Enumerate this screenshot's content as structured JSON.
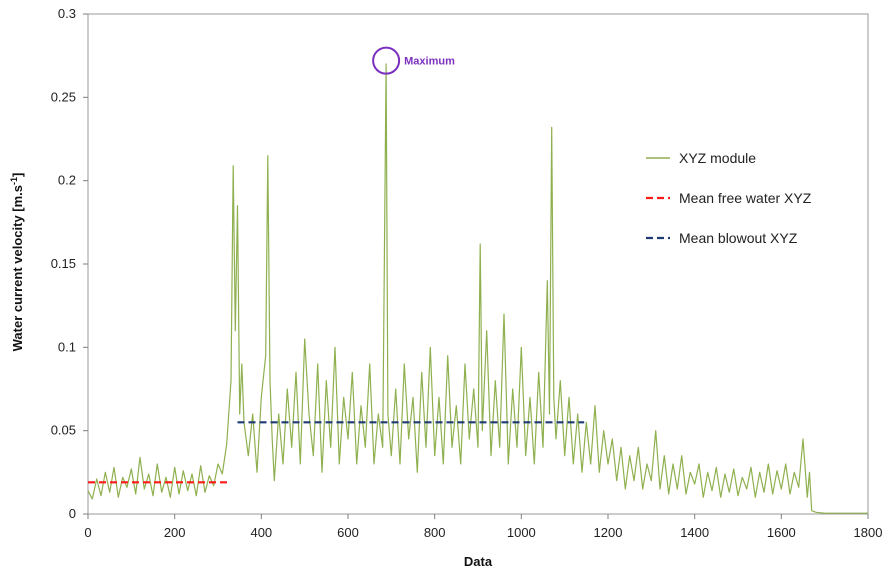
{
  "chart_data": {
    "type": "line",
    "title": "",
    "xlabel": "Data",
    "ylabel": "Water current velocity  [m.s",
    "ylabel_sup": "-1",
    "ylabel_close": "]",
    "xlim": [
      0,
      1800
    ],
    "ylim": [
      0,
      0.3
    ],
    "x_ticks": [
      0,
      200,
      400,
      600,
      800,
      1000,
      1200,
      1400,
      1600,
      1800
    ],
    "y_ticks": [
      0,
      0.05,
      0.1,
      0.15,
      0.2,
      0.25,
      0.3
    ],
    "x_tick_labels": [
      "0",
      "200",
      "400",
      "600",
      "800",
      "1000",
      "1200",
      "1400",
      "1600",
      "1800"
    ],
    "y_tick_labels": [
      "0",
      "0.05",
      "0.1",
      "0.15",
      "0.2",
      "0.25",
      "0.3"
    ],
    "grid": false,
    "legend_position": "right",
    "series": [
      {
        "name": "XYZ module",
        "style": "solid",
        "color": "#8fb04f",
        "points": [
          [
            0,
            0.014
          ],
          [
            10,
            0.009
          ],
          [
            20,
            0.021
          ],
          [
            30,
            0.011
          ],
          [
            40,
            0.025
          ],
          [
            50,
            0.013
          ],
          [
            60,
            0.028
          ],
          [
            70,
            0.01
          ],
          [
            80,
            0.022
          ],
          [
            90,
            0.016
          ],
          [
            100,
            0.027
          ],
          [
            110,
            0.012
          ],
          [
            120,
            0.034
          ],
          [
            130,
            0.015
          ],
          [
            140,
            0.024
          ],
          [
            150,
            0.011
          ],
          [
            160,
            0.03
          ],
          [
            170,
            0.013
          ],
          [
            180,
            0.022
          ],
          [
            190,
            0.01
          ],
          [
            200,
            0.028
          ],
          [
            210,
            0.012
          ],
          [
            220,
            0.026
          ],
          [
            230,
            0.014
          ],
          [
            240,
            0.024
          ],
          [
            250,
            0.011
          ],
          [
            260,
            0.029
          ],
          [
            270,
            0.013
          ],
          [
            280,
            0.023
          ],
          [
            290,
            0.017
          ],
          [
            300,
            0.03
          ],
          [
            310,
            0.024
          ],
          [
            320,
            0.042
          ],
          [
            330,
            0.08
          ],
          [
            335,
            0.209
          ],
          [
            340,
            0.11
          ],
          [
            345,
            0.185
          ],
          [
            350,
            0.06
          ],
          [
            355,
            0.09
          ],
          [
            360,
            0.055
          ],
          [
            370,
            0.035
          ],
          [
            380,
            0.06
          ],
          [
            390,
            0.025
          ],
          [
            400,
            0.07
          ],
          [
            410,
            0.095
          ],
          [
            415,
            0.215
          ],
          [
            420,
            0.08
          ],
          [
            425,
            0.045
          ],
          [
            430,
            0.02
          ],
          [
            440,
            0.06
          ],
          [
            450,
            0.03
          ],
          [
            460,
            0.075
          ],
          [
            470,
            0.04
          ],
          [
            480,
            0.085
          ],
          [
            490,
            0.03
          ],
          [
            500,
            0.105
          ],
          [
            510,
            0.06
          ],
          [
            520,
            0.035
          ],
          [
            530,
            0.09
          ],
          [
            540,
            0.025
          ],
          [
            550,
            0.08
          ],
          [
            560,
            0.04
          ],
          [
            570,
            0.1
          ],
          [
            580,
            0.03
          ],
          [
            590,
            0.07
          ],
          [
            600,
            0.045
          ],
          [
            610,
            0.085
          ],
          [
            620,
            0.03
          ],
          [
            630,
            0.065
          ],
          [
            640,
            0.04
          ],
          [
            650,
            0.09
          ],
          [
            660,
            0.03
          ],
          [
            670,
            0.06
          ],
          [
            680,
            0.04
          ],
          [
            688,
            0.27
          ],
          [
            692,
            0.06
          ],
          [
            700,
            0.035
          ],
          [
            710,
            0.075
          ],
          [
            720,
            0.03
          ],
          [
            730,
            0.09
          ],
          [
            740,
            0.045
          ],
          [
            750,
            0.07
          ],
          [
            760,
            0.025
          ],
          [
            770,
            0.085
          ],
          [
            780,
            0.04
          ],
          [
            790,
            0.1
          ],
          [
            800,
            0.035
          ],
          [
            810,
            0.07
          ],
          [
            820,
            0.03
          ],
          [
            830,
            0.095
          ],
          [
            840,
            0.04
          ],
          [
            850,
            0.065
          ],
          [
            860,
            0.03
          ],
          [
            870,
            0.09
          ],
          [
            880,
            0.045
          ],
          [
            890,
            0.075
          ],
          [
            900,
            0.04
          ],
          [
            905,
            0.162
          ],
          [
            910,
            0.05
          ],
          [
            920,
            0.11
          ],
          [
            930,
            0.035
          ],
          [
            940,
            0.08
          ],
          [
            950,
            0.04
          ],
          [
            960,
            0.12
          ],
          [
            970,
            0.03
          ],
          [
            980,
            0.075
          ],
          [
            990,
            0.04
          ],
          [
            1000,
            0.1
          ],
          [
            1010,
            0.035
          ],
          [
            1020,
            0.07
          ],
          [
            1030,
            0.03
          ],
          [
            1040,
            0.085
          ],
          [
            1050,
            0.04
          ],
          [
            1060,
            0.14
          ],
          [
            1065,
            0.06
          ],
          [
            1070,
            0.232
          ],
          [
            1075,
            0.07
          ],
          [
            1080,
            0.045
          ],
          [
            1090,
            0.08
          ],
          [
            1100,
            0.035
          ],
          [
            1110,
            0.07
          ],
          [
            1120,
            0.03
          ],
          [
            1130,
            0.06
          ],
          [
            1140,
            0.025
          ],
          [
            1150,
            0.055
          ],
          [
            1160,
            0.03
          ],
          [
            1170,
            0.065
          ],
          [
            1180,
            0.025
          ],
          [
            1190,
            0.05
          ],
          [
            1200,
            0.03
          ],
          [
            1210,
            0.045
          ],
          [
            1220,
            0.02
          ],
          [
            1230,
            0.04
          ],
          [
            1240,
            0.015
          ],
          [
            1250,
            0.035
          ],
          [
            1260,
            0.02
          ],
          [
            1270,
            0.04
          ],
          [
            1280,
            0.015
          ],
          [
            1290,
            0.03
          ],
          [
            1300,
            0.02
          ],
          [
            1310,
            0.05
          ],
          [
            1320,
            0.015
          ],
          [
            1330,
            0.035
          ],
          [
            1340,
            0.012
          ],
          [
            1350,
            0.03
          ],
          [
            1360,
            0.015
          ],
          [
            1370,
            0.035
          ],
          [
            1380,
            0.012
          ],
          [
            1390,
            0.025
          ],
          [
            1400,
            0.018
          ],
          [
            1410,
            0.03
          ],
          [
            1420,
            0.01
          ],
          [
            1430,
            0.025
          ],
          [
            1440,
            0.014
          ],
          [
            1450,
            0.028
          ],
          [
            1460,
            0.01
          ],
          [
            1470,
            0.024
          ],
          [
            1480,
            0.013
          ],
          [
            1490,
            0.027
          ],
          [
            1500,
            0.011
          ],
          [
            1510,
            0.022
          ],
          [
            1520,
            0.015
          ],
          [
            1530,
            0.028
          ],
          [
            1540,
            0.01
          ],
          [
            1550,
            0.025
          ],
          [
            1560,
            0.013
          ],
          [
            1570,
            0.03
          ],
          [
            1580,
            0.012
          ],
          [
            1590,
            0.026
          ],
          [
            1600,
            0.015
          ],
          [
            1610,
            0.03
          ],
          [
            1620,
            0.012
          ],
          [
            1630,
            0.025
          ],
          [
            1640,
            0.016
          ],
          [
            1650,
            0.045
          ],
          [
            1660,
            0.01
          ],
          [
            1665,
            0.025
          ],
          [
            1670,
            0.002
          ],
          [
            1680,
            0.001
          ],
          [
            1700,
            0.0005
          ],
          [
            1750,
            0.0005
          ],
          [
            1800,
            0.0005
          ]
        ]
      },
      {
        "name": "Mean free water XYZ",
        "style": "dashed",
        "color": "#ff1a1a",
        "points": [
          [
            0,
            0.019
          ],
          [
            325,
            0.019
          ]
        ]
      },
      {
        "name": "Mean blowout XYZ",
        "style": "dashed",
        "color": "#1f3b73",
        "points": [
          [
            345,
            0.055
          ],
          [
            1145,
            0.055
          ]
        ]
      }
    ],
    "annotations": [
      {
        "text": "Maximum",
        "x": 688,
        "y": 0.272,
        "color": "#7b2fbf"
      }
    ]
  }
}
